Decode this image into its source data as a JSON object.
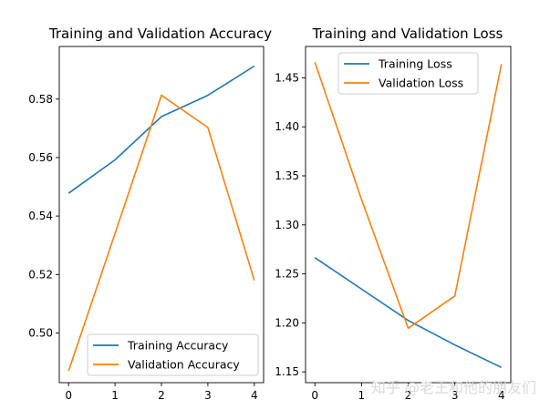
{
  "watermark": "知乎 @老王和他的朋友们",
  "chart_data": [
    {
      "type": "line",
      "title": "Training and Validation Accuracy",
      "x": [
        0,
        1,
        2,
        3,
        4
      ],
      "xticks": [
        0,
        1,
        2,
        3,
        4
      ],
      "ylim": [
        0.483,
        0.598
      ],
      "yticks": [
        0.5,
        0.52,
        0.54,
        0.56,
        0.58
      ],
      "ytick_labels": [
        "0.50",
        "0.52",
        "0.54",
        "0.56",
        "0.58"
      ],
      "grid": false,
      "legend_position": "lower-right",
      "series": [
        {
          "name": "Training Accuracy",
          "color": "#1f77b4",
          "values": [
            0.5478,
            0.5592,
            0.574,
            0.5813,
            0.5913
          ]
        },
        {
          "name": "Validation Accuracy",
          "color": "#ff7f0e",
          "values": [
            0.487,
            0.534,
            0.5813,
            0.5703,
            0.518
          ]
        }
      ]
    },
    {
      "type": "line",
      "title": "Training and Validation Loss",
      "x": [
        0,
        1,
        2,
        3,
        4
      ],
      "xticks": [
        0,
        1,
        2,
        3,
        4
      ],
      "ylim": [
        1.139,
        1.482
      ],
      "yticks": [
        1.15,
        1.2,
        1.25,
        1.3,
        1.35,
        1.4,
        1.45
      ],
      "ytick_labels": [
        "1.15",
        "1.20",
        "1.25",
        "1.30",
        "1.35",
        "1.40",
        "1.45"
      ],
      "grid": false,
      "legend_position": "upper-right",
      "series": [
        {
          "name": "Training Loss",
          "color": "#1f77b4",
          "values": [
            1.2665,
            1.2345,
            1.2025,
            1.1775,
            1.1545
          ]
        },
        {
          "name": "Validation Loss",
          "color": "#ff7f0e",
          "values": [
            1.466,
            1.326,
            1.1945,
            1.2275,
            1.464
          ]
        }
      ]
    }
  ]
}
